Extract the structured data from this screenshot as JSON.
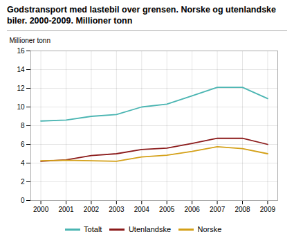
{
  "chart_data": {
    "type": "line",
    "title": "Godstransport med lastebil over grensen. Norske og utenlandske biler. 2000-2009. Millioner tonn",
    "ylabel": "Millioner tonn",
    "x": [
      2000,
      2001,
      2002,
      2003,
      2004,
      2005,
      2006,
      2007,
      2008,
      2009
    ],
    "series": [
      {
        "name": "Totalt",
        "color": "#4ab5b2",
        "values": [
          8.5,
          8.6,
          9.0,
          9.2,
          10.0,
          10.3,
          11.2,
          12.1,
          12.1,
          10.9
        ]
      },
      {
        "name": "Utenlandske",
        "color": "#8b1a1a",
        "values": [
          4.2,
          4.35,
          4.8,
          5.0,
          5.45,
          5.6,
          6.1,
          6.65,
          6.65,
          6.0
        ]
      },
      {
        "name": "Norske",
        "color": "#d4a017",
        "values": [
          4.25,
          4.3,
          4.25,
          4.2,
          4.65,
          4.85,
          5.25,
          5.75,
          5.55,
          5.0
        ]
      }
    ],
    "xlim": [
      1999.6,
      2009.4
    ],
    "xticks": [
      2000,
      2001,
      2002,
      2003,
      2004,
      2005,
      2006,
      2007,
      2008,
      2009
    ],
    "ylim": [
      0,
      16
    ],
    "yticks": [
      0,
      2,
      4,
      6,
      8,
      10,
      12,
      14,
      16
    ],
    "grid": true,
    "legend": "bottom"
  }
}
